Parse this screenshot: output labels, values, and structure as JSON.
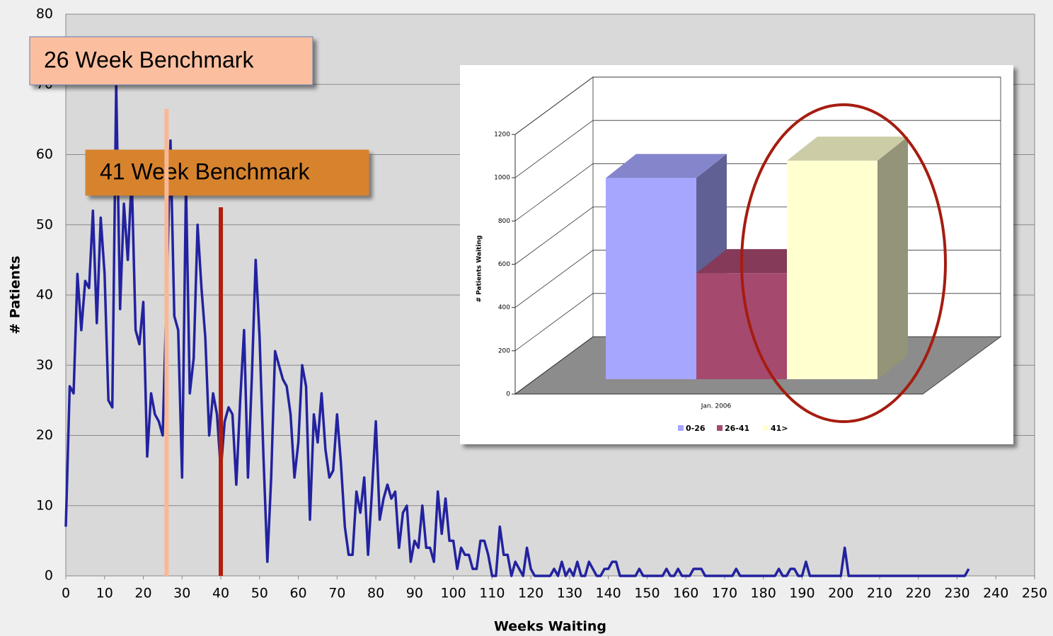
{
  "chart_data": [
    {
      "type": "line",
      "xlabel": "Weeks Waiting",
      "ylabel": "# Patients",
      "color": "#2222a0",
      "xlim": [
        0,
        250
      ],
      "xticks": [
        0,
        10,
        20,
        30,
        40,
        50,
        60,
        70,
        80,
        90,
        100,
        110,
        120,
        130,
        140,
        150,
        160,
        170,
        180,
        190,
        200,
        210,
        220,
        230,
        240,
        250
      ],
      "ylim": [
        0,
        80
      ],
      "yticks": [
        0,
        10,
        20,
        30,
        40,
        50,
        60,
        70,
        80
      ],
      "grid": true,
      "x": [
        0,
        1,
        2,
        3,
        4,
        5,
        6,
        7,
        8,
        9,
        10,
        11,
        12,
        13,
        14,
        15,
        16,
        17,
        18,
        19,
        20,
        21,
        22,
        23,
        24,
        25,
        26,
        27,
        28,
        29,
        30,
        31,
        32,
        33,
        34,
        35,
        36,
        37,
        38,
        39,
        40,
        41,
        42,
        43,
        44,
        45,
        46,
        47,
        48,
        49,
        50,
        51,
        52,
        53,
        54,
        55,
        56,
        57,
        58,
        59,
        60,
        61,
        62,
        63,
        64,
        65,
        66,
        67,
        68,
        69,
        70,
        71,
        72,
        73,
        74,
        75,
        76,
        77,
        78,
        79,
        80,
        81,
        82,
        83,
        84,
        85,
        86,
        87,
        88,
        89,
        90,
        91,
        92,
        93,
        94,
        95,
        96,
        97,
        98,
        99,
        100,
        101,
        102,
        103,
        104,
        105,
        106,
        107,
        108,
        109,
        110,
        111,
        112,
        113,
        114,
        115,
        116,
        117,
        118,
        119,
        120,
        121,
        122,
        123,
        124,
        125,
        126,
        127,
        128,
        129,
        130,
        131,
        132,
        133,
        134,
        135,
        136,
        137,
        138,
        139,
        140,
        141,
        142,
        143,
        144,
        145,
        146,
        147,
        148,
        149,
        150,
        151,
        152,
        153,
        154,
        155,
        156,
        157,
        158,
        159,
        160,
        161,
        162,
        163,
        164,
        165,
        166,
        167,
        168,
        169,
        170,
        171,
        172,
        173,
        174,
        175,
        176,
        177,
        178,
        179,
        180,
        181,
        182,
        183,
        184,
        185,
        186,
        187,
        188,
        189,
        190,
        191,
        192,
        193,
        194,
        195,
        196,
        197,
        198,
        199,
        200,
        201,
        202,
        203,
        204,
        205,
        206,
        207,
        208,
        209,
        210,
        211,
        212,
        213,
        214,
        215,
        216,
        217,
        218,
        219,
        220,
        221,
        222,
        223,
        224,
        225,
        226,
        227,
        228,
        229,
        230,
        231,
        232,
        233
      ],
      "values": [
        7,
        27,
        26,
        43,
        35,
        42,
        41,
        52,
        36,
        51,
        43,
        25,
        24,
        70,
        38,
        53,
        45,
        57,
        35,
        33,
        39,
        17,
        26,
        23,
        22,
        20,
        40,
        62,
        37,
        35,
        14,
        56,
        26,
        31,
        50,
        41,
        34,
        20,
        26,
        23,
        15,
        22,
        24,
        23,
        13,
        25,
        35,
        14,
        28,
        45,
        34,
        17,
        2,
        14,
        32,
        30,
        28,
        27,
        23,
        14,
        19,
        30,
        27,
        8,
        23,
        19,
        26,
        18,
        14,
        15,
        23,
        16,
        7,
        3,
        3,
        12,
        9,
        14,
        3,
        12,
        22,
        8,
        11,
        13,
        11,
        12,
        4,
        9,
        10,
        2,
        5,
        4,
        10,
        4,
        4,
        2,
        12,
        6,
        11,
        5,
        5,
        1,
        4,
        3,
        3,
        1,
        1,
        5,
        5,
        3,
        0,
        0,
        7,
        3,
        3,
        0,
        2,
        1,
        0,
        4,
        1,
        0,
        0,
        0,
        0,
        0,
        1,
        0,
        2,
        0,
        1,
        0,
        2,
        0,
        0,
        2,
        1,
        0,
        0,
        1,
        1,
        2,
        2,
        0,
        0,
        0,
        0,
        0,
        1,
        0,
        0,
        0,
        0,
        0,
        0,
        1,
        0,
        0,
        1,
        0,
        0,
        0,
        1,
        1,
        1,
        0,
        0,
        0,
        0,
        0,
        0,
        0,
        0,
        1,
        0,
        0,
        0,
        0,
        0,
        0,
        0,
        0,
        0,
        0,
        1,
        0,
        0,
        1,
        1,
        0,
        0,
        2,
        0,
        0,
        0,
        0,
        0,
        0,
        0,
        0,
        0,
        4,
        0,
        0,
        0,
        0,
        0,
        0,
        0,
        0,
        0,
        0,
        0,
        0,
        0,
        0,
        0,
        0,
        0,
        0,
        0,
        0,
        0,
        0,
        0,
        0,
        0,
        0,
        0,
        0,
        0,
        0,
        0,
        1
      ],
      "annotations": [
        {
          "label": "26 Week Benchmark",
          "x": 26,
          "top": 66.5,
          "color": "#f9b894"
        },
        {
          "label": "41 Week Benchmark",
          "x": 40,
          "top": 52.5,
          "color": "#b01e0e"
        }
      ]
    },
    {
      "type": "bar",
      "ylabel": "# Patients Waiting",
      "categories": [
        "Jan. 2006"
      ],
      "ylim": [
        0,
        1200
      ],
      "yticks": [
        0,
        200,
        400,
        600,
        800,
        1000,
        1200
      ],
      "series": [
        {
          "name": "0-26",
          "color": "#a6a6ff",
          "values": [
            930
          ]
        },
        {
          "name": "26-41",
          "color": "#a6496f",
          "values": [
            490
          ]
        },
        {
          "name": "41>",
          "color": "#ffffd0",
          "values": [
            1010
          ]
        }
      ]
    }
  ]
}
